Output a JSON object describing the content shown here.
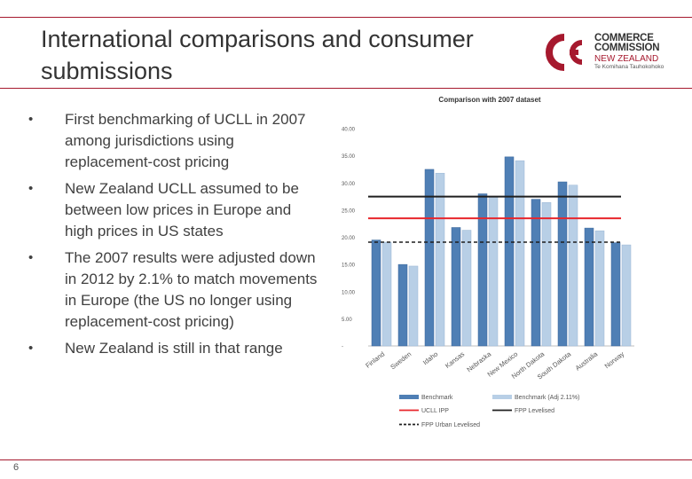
{
  "slide": {
    "title": "International comparisons and consumer submissions",
    "page_number": "6",
    "logo": {
      "line1": "COMMERCE",
      "line2": "COMMISSION",
      "line3": "NEW ZEALAND",
      "line4": "Te Komihana Tauhokohoko"
    },
    "bullets": [
      "First benchmarking of UCLL in 2007 among jurisdictions using replacement-cost pricing",
      "New Zealand UCLL assumed to be between low prices in Europe and high prices in US states",
      "The 2007 results were adjusted down in 2012 by 2.1% to match movements in Europe (the US no longer using replacement-cost pricing)",
      "New Zealand is still in that range"
    ],
    "bullet_symbol": "•"
  },
  "colors": {
    "accent": "#a6192e",
    "benchmark": "#4f7fb5",
    "benchmark_adj": "#b8cfe6",
    "ucll_ipp": "#e8262c",
    "fpp": "#1f1f1f"
  },
  "chart_data": {
    "type": "bar",
    "title": "Comparison with 2007 dataset",
    "categories": [
      "Finland",
      "Sweden",
      "Idaho",
      "Kansas",
      "Nebraska",
      "New Mexico",
      "North Dakota",
      "South Dakota",
      "Australia",
      "Norway"
    ],
    "series": [
      {
        "name": "Benchmark",
        "values": [
          19.5,
          15.0,
          32.5,
          21.8,
          28.0,
          34.8,
          27.0,
          30.2,
          21.7,
          19.0
        ]
      },
      {
        "name": "Benchmark (Adj 2.11%)",
        "values": [
          19.1,
          14.7,
          31.8,
          21.3,
          27.4,
          34.1,
          26.4,
          29.6,
          21.2,
          18.6
        ]
      }
    ],
    "reference_lines": [
      {
        "name": "UCLL IPP",
        "value": 23.5,
        "style": "solid"
      },
      {
        "name": "FPP Levelised",
        "value": 27.5,
        "style": "solid"
      },
      {
        "name": "FPP Urban Levelised",
        "value": 19.1,
        "style": "dashed"
      }
    ],
    "y_ticks": [
      "-",
      "5.00",
      "10.00",
      "15.00",
      "20.00",
      "25.00",
      "30.00",
      "35.00",
      "40.00"
    ],
    "ylim": [
      0,
      40
    ],
    "legend": [
      "Benchmark",
      "Benchmark (Adj 2.11%)",
      "UCLL IPP",
      "FPP Levelised",
      "FPP Urban Levelised"
    ],
    "legend_position": "bottom"
  }
}
